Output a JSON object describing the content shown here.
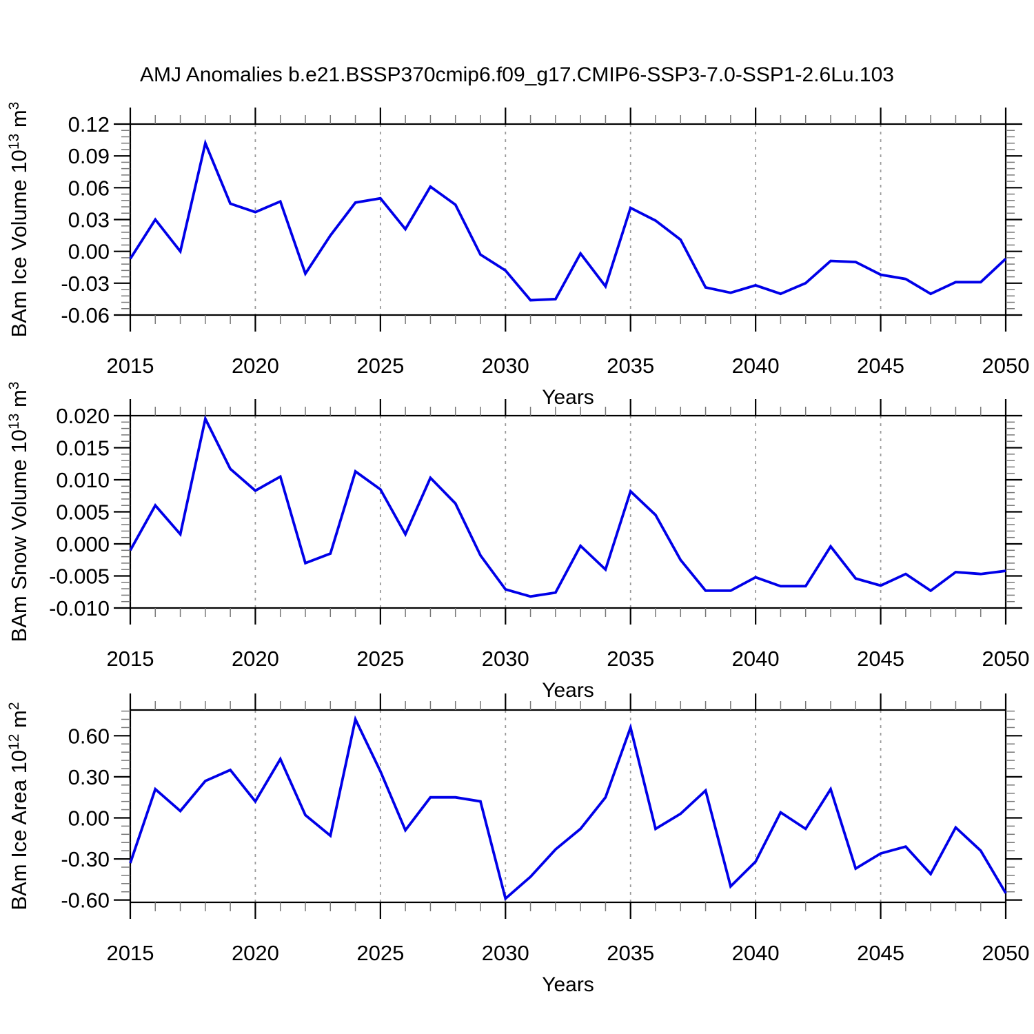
{
  "page": {
    "title": "AMJ Anomalies b.e21.BSSP370cmip6.f09_g17.CMIP6-SSP3-7.0-SSP1-2.6Lu.103"
  },
  "colors": {
    "line": "#0000E8",
    "grid": "#999999",
    "frame": "#000000",
    "minor_tick": "#777777"
  },
  "chart_data": {
    "type": "line",
    "x_label": "Years",
    "x_years": [
      2015,
      2016,
      2017,
      2018,
      2019,
      2020,
      2021,
      2022,
      2023,
      2024,
      2025,
      2026,
      2027,
      2028,
      2029,
      2030,
      2031,
      2032,
      2033,
      2034,
      2035,
      2036,
      2037,
      2038,
      2039,
      2040,
      2041,
      2042,
      2043,
      2044,
      2045,
      2046,
      2047,
      2048,
      2049,
      2050
    ],
    "x_major_ticks": [
      2015,
      2020,
      2025,
      2030,
      2035,
      2040,
      2045,
      2050
    ],
    "grid_years": [
      2020,
      2025,
      2030,
      2035,
      2040,
      2045
    ],
    "legend": "none",
    "grid": "vertical-dashed",
    "charts": [
      {
        "name": "ice-volume",
        "ylabel_parts": [
          [
            "t",
            "BAm Ice Volume 10"
          ],
          [
            "s",
            "13"
          ],
          [
            "t",
            " m"
          ],
          [
            "s",
            "3"
          ]
        ],
        "ylabel_text": "BAm Ice Volume 10^13 m^3",
        "yticks": [
          0.12,
          0.09,
          0.06,
          0.03,
          0.0,
          -0.03,
          -0.06
        ],
        "ytick_labels": [
          "0.12",
          "0.09",
          "0.06",
          "0.03",
          "0.00",
          "-0.03",
          "-0.06"
        ],
        "ylim": [
          -0.06,
          0.12
        ],
        "minor_step": 0.006,
        "values": [
          -0.007,
          0.03,
          0.0,
          0.102,
          0.045,
          0.037,
          0.047,
          -0.021,
          0.015,
          0.046,
          0.05,
          0.021,
          0.061,
          0.044,
          -0.003,
          -0.018,
          -0.046,
          -0.045,
          -0.002,
          -0.033,
          0.041,
          0.029,
          0.011,
          -0.034,
          -0.039,
          -0.032,
          -0.04,
          -0.03,
          -0.009,
          -0.01,
          -0.022,
          -0.026,
          -0.04,
          -0.029,
          -0.029,
          -0.007
        ]
      },
      {
        "name": "snow-volume",
        "ylabel_parts": [
          [
            "t",
            "BAm Snow Volume 10"
          ],
          [
            "s",
            "13"
          ],
          [
            "t",
            " m"
          ],
          [
            "s",
            "3"
          ]
        ],
        "ylabel_text": "BAm Snow Volume 10^13 m^3",
        "yticks": [
          0.02,
          0.015,
          0.01,
          0.005,
          0.0,
          -0.005,
          -0.01
        ],
        "ytick_labels": [
          "0.020",
          "0.015",
          "0.010",
          "0.005",
          "0.000",
          "-0.005",
          "-0.010"
        ],
        "ylim": [
          -0.01,
          0.02
        ],
        "minor_step": 0.001,
        "values": [
          -0.001,
          0.006,
          0.0015,
          0.0195,
          0.0117,
          0.0083,
          0.0105,
          -0.003,
          -0.0015,
          0.0113,
          0.0085,
          0.0015,
          0.0103,
          0.0063,
          -0.0018,
          -0.0071,
          -0.0082,
          -0.0076,
          -0.0003,
          -0.004,
          0.0082,
          0.0045,
          -0.0025,
          -0.0073,
          -0.0073,
          -0.0052,
          -0.0066,
          -0.0066,
          -0.0004,
          -0.0054,
          -0.0065,
          -0.0047,
          -0.0073,
          -0.0044,
          -0.0047,
          -0.0042
        ]
      },
      {
        "name": "ice-area",
        "ylabel_parts": [
          [
            "t",
            "BAm Ice Area 10"
          ],
          [
            "s",
            "12"
          ],
          [
            "t",
            " m"
          ],
          [
            "s",
            "2"
          ]
        ],
        "ylabel_text": "BAm Ice Area 10^12 m^2",
        "yticks": [
          0.6,
          0.3,
          0.0,
          -0.3,
          -0.6
        ],
        "ytick_labels": [
          "0.60",
          "0.30",
          "0.00",
          "-0.30",
          "-0.60"
        ],
        "ylim": [
          -0.617,
          0.788
        ],
        "minor_step": 0.06,
        "values": [
          -0.33,
          0.21,
          0.05,
          0.27,
          0.35,
          0.12,
          0.43,
          0.02,
          -0.13,
          0.72,
          0.34,
          -0.09,
          0.15,
          0.15,
          0.12,
          -0.59,
          -0.43,
          -0.23,
          -0.08,
          0.15,
          0.66,
          -0.08,
          0.03,
          0.2,
          -0.5,
          -0.32,
          0.04,
          -0.08,
          0.21,
          -0.37,
          -0.26,
          -0.21,
          -0.41,
          -0.07,
          -0.24,
          -0.55
        ]
      }
    ]
  }
}
